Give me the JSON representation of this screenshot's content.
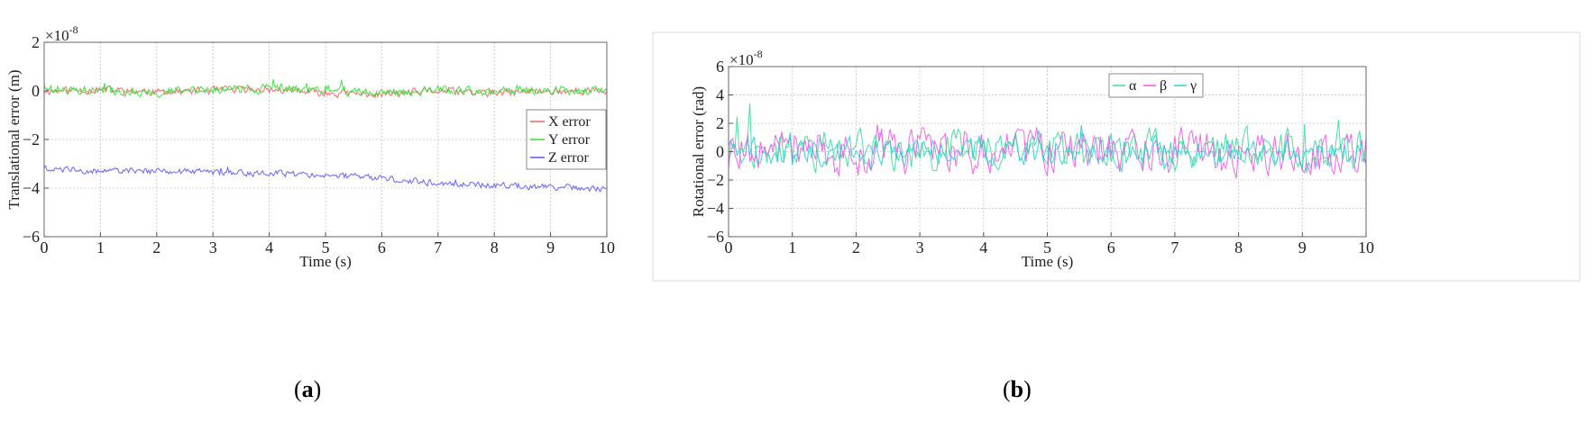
{
  "captions": {
    "a": "a",
    "b": "b"
  },
  "colors": {
    "x_error": "#f06060",
    "y_error": "#30e030",
    "z_error": "#5555ff",
    "alpha": "#33dd99",
    "beta": "#ee55ee",
    "gamma": "#33cccc"
  },
  "chart_data": [
    {
      "type": "line",
      "xlabel": "Time (s)",
      "ylabel": "Translational error (m)",
      "exponent_label": "×10",
      "exponent_power": "-8",
      "xlim": [
        0,
        10
      ],
      "ylim": [
        -6,
        2
      ],
      "xticks": [
        0,
        1,
        2,
        3,
        4,
        5,
        6,
        7,
        8,
        9,
        10
      ],
      "yticks": [
        -6,
        -4,
        -2,
        0,
        2
      ],
      "ytick_labels": [
        "−6",
        "−4",
        "−2",
        "0",
        "2"
      ],
      "grid": true,
      "legend_position": "right",
      "series": [
        {
          "name": "X error",
          "color": "#f06060",
          "mean": 0.0,
          "amplitude": 0.22,
          "points": [
            [
              0,
              0
            ],
            [
              1,
              0.05
            ],
            [
              2,
              -0.05
            ],
            [
              3,
              0.02
            ],
            [
              4,
              0.05
            ],
            [
              5,
              -0.1
            ],
            [
              6,
              -0.15
            ],
            [
              7,
              0
            ],
            [
              8,
              -0.1
            ],
            [
              9,
              0
            ],
            [
              10,
              0
            ]
          ]
        },
        {
          "name": "Y error",
          "color": "#30e030",
          "mean": 0.0,
          "amplitude": 0.25,
          "points": [
            [
              0,
              0.1
            ],
            [
              1,
              0
            ],
            [
              2,
              -0.05
            ],
            [
              3,
              0.05
            ],
            [
              4,
              0.1
            ],
            [
              5,
              0.05
            ],
            [
              6,
              -0.1
            ],
            [
              7,
              0.05
            ],
            [
              8,
              -0.05
            ],
            [
              9,
              0.05
            ],
            [
              10,
              0
            ]
          ]
        },
        {
          "name": "Z error",
          "color": "#5555ff",
          "mean": -3.6,
          "amplitude": 0.18,
          "points": [
            [
              0,
              -3.2
            ],
            [
              1,
              -3.3
            ],
            [
              2,
              -3.3
            ],
            [
              3,
              -3.35
            ],
            [
              4,
              -3.4
            ],
            [
              5,
              -3.45
            ],
            [
              6,
              -3.6
            ],
            [
              7,
              -3.8
            ],
            [
              8,
              -3.9
            ],
            [
              9,
              -3.95
            ],
            [
              10,
              -4.05
            ]
          ]
        }
      ]
    },
    {
      "type": "line",
      "xlabel": "Time (s)",
      "ylabel": "Rotational error (rad)",
      "exponent_label": "×10",
      "exponent_power": "-8",
      "xlim": [
        0,
        10
      ],
      "ylim": [
        -6,
        6
      ],
      "xticks": [
        0,
        1,
        2,
        3,
        4,
        5,
        6,
        7,
        8,
        9,
        10
      ],
      "yticks": [
        -6,
        -4,
        -2,
        0,
        2,
        4,
        6
      ],
      "ytick_labels": [
        "−6",
        "−4",
        "−2",
        "0",
        "2",
        "4",
        "6"
      ],
      "grid": true,
      "legend_position": "top-right",
      "series": [
        {
          "name": "α",
          "color": "#33dd99",
          "mean": 0.0,
          "amplitude": 2.0
        },
        {
          "name": "β",
          "color": "#ee55ee",
          "mean": 0.0,
          "amplitude": 2.2
        },
        {
          "name": "γ",
          "color": "#33cccc",
          "mean": 0.0,
          "amplitude": 1.4
        }
      ]
    }
  ]
}
